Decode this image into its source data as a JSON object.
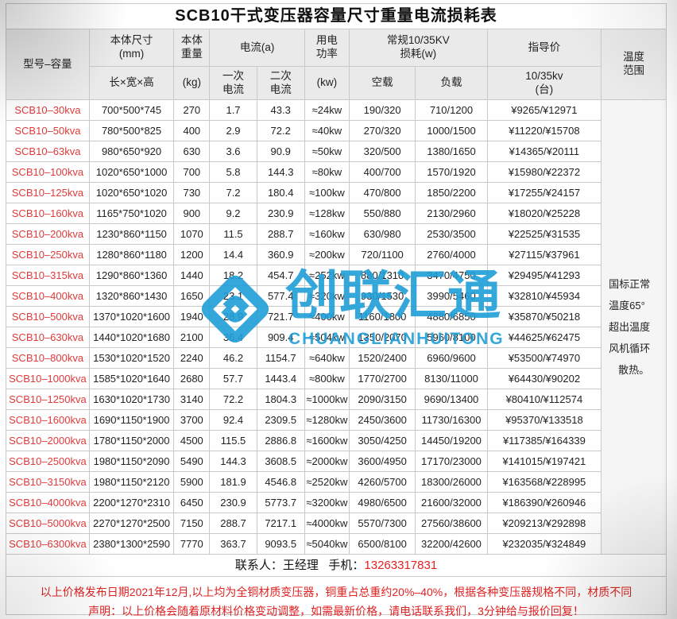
{
  "title": "SCB10干式变压器容量尺寸重量电流损耗表",
  "header": {
    "model": "型号–容量",
    "size_l1": "本体尺寸\n(mm)",
    "size_l2": "长×宽×高",
    "weight_l1": "本体\n重量",
    "weight_l2": "(kg)",
    "current": "电流(a)",
    "current_primary": "一次\n电流",
    "current_secondary": "二次\n电流",
    "power_l1": "用电\n功率",
    "power_l2": "(kw)",
    "loss": "常规10/35KV\n损耗(w)",
    "no_load": "空载",
    "load": "负载",
    "price_l1": "指导价",
    "price_l2": "10/35kv\n(台)",
    "temp": "温度\n范围"
  },
  "rows": [
    {
      "model": "SCB10–30kva",
      "size": "700*500*745",
      "weight": "270",
      "i1": "1.7",
      "i2": "43.3",
      "power": "≈24kw",
      "no_load": "190/320",
      "load": "710/1200",
      "price": "¥9265/¥12971"
    },
    {
      "model": "SCB10–50kva",
      "size": "780*500*825",
      "weight": "400",
      "i1": "2.9",
      "i2": "72.2",
      "power": "≈40kw",
      "no_load": "270/320",
      "load": "1000/1500",
      "price": "¥11220/¥15708"
    },
    {
      "model": "SCB10–63kva",
      "size": "980*650*920",
      "weight": "630",
      "i1": "3.6",
      "i2": "90.9",
      "power": "≈50kw",
      "no_load": "320/500",
      "load": "1380/1650",
      "price": "¥14365/¥20111"
    },
    {
      "model": "SCB10–100kva",
      "size": "1020*650*1000",
      "weight": "700",
      "i1": "5.8",
      "i2": "144.3",
      "power": "≈80kw",
      "no_load": "400/700",
      "load": "1570/1920",
      "price": "¥15980/¥22372"
    },
    {
      "model": "SCB10–125kva",
      "size": "1020*650*1020",
      "weight": "730",
      "i1": "7.2",
      "i2": "180.4",
      "power": "≈100kw",
      "no_load": "470/800",
      "load": "1850/2200",
      "price": "¥17255/¥24157"
    },
    {
      "model": "SCB10–160kva",
      "size": "1165*750*1020",
      "weight": "900",
      "i1": "9.2",
      "i2": "230.9",
      "power": "≈128kw",
      "no_load": "550/880",
      "load": "2130/2960",
      "price": "¥18020/¥25228"
    },
    {
      "model": "SCB10–200kva",
      "size": "1230*860*1150",
      "weight": "1070",
      "i1": "11.5",
      "i2": "288.7",
      "power": "≈160kw",
      "no_load": "630/980",
      "load": "2530/3500",
      "price": "¥22525/¥31535"
    },
    {
      "model": "SCB10–250kva",
      "size": "1280*860*1180",
      "weight": "1200",
      "i1": "14.4",
      "i2": "360.9",
      "power": "≈200kw",
      "no_load": "720/1100",
      "load": "2760/4000",
      "price": "¥27115/¥37961"
    },
    {
      "model": "SCB10–315kva",
      "size": "1290*860*1360",
      "weight": "1440",
      "i1": "18.2",
      "i2": "454.7",
      "power": "≈252kw",
      "no_load": "880/1310",
      "load": "3470/4750",
      "price": "¥29495/¥41293"
    },
    {
      "model": "SCB10–400kva",
      "size": "1320*860*1430",
      "weight": "1650",
      "i1": "23.1",
      "i2": "577.4",
      "power": "≈320kw",
      "no_load": "930/1530",
      "load": "3990/5460",
      "price": "¥32810/¥45934"
    },
    {
      "model": "SCB10–500kva",
      "size": "1370*1020*1600",
      "weight": "1940",
      "i1": "28.9",
      "i2": "721.7",
      "power": "≈400kw",
      "no_load": "1160/1800",
      "load": "4880/6850",
      "price": "¥35870/¥50218"
    },
    {
      "model": "SCB10–630kva",
      "size": "1440*1020*1680",
      "weight": "2100",
      "i1": "36.4",
      "i2": "909.4",
      "power": "≈504kw",
      "no_load": "1350/2070",
      "load": "5960/8100",
      "price": "¥44625/¥62475"
    },
    {
      "model": "SCB10–800kva",
      "size": "1530*1020*1520",
      "weight": "2240",
      "i1": "46.2",
      "i2": "1154.7",
      "power": "≈640kw",
      "no_load": "1520/2400",
      "load": "6960/9600",
      "price": "¥53500/¥74970"
    },
    {
      "model": "SCB10–1000kva",
      "size": "1585*1020*1640",
      "weight": "2680",
      "i1": "57.7",
      "i2": "1443.4",
      "power": "≈800kw",
      "no_load": "1770/2700",
      "load": "8130/11000",
      "price": "¥64430/¥90202"
    },
    {
      "model": "SCB10–1250kva",
      "size": "1630*1020*1730",
      "weight": "3140",
      "i1": "72.2",
      "i2": "1804.3",
      "power": "≈1000kw",
      "no_load": "2090/3150",
      "load": "9690/13400",
      "price": "¥80410/¥112574"
    },
    {
      "model": "SCB10–1600kva",
      "size": "1690*1150*1900",
      "weight": "3700",
      "i1": "92.4",
      "i2": "2309.5",
      "power": "≈1280kw",
      "no_load": "2450/3600",
      "load": "11730/16300",
      "price": "¥95370/¥133518"
    },
    {
      "model": "SCB10–2000kva",
      "size": "1780*1150*2000",
      "weight": "4500",
      "i1": "115.5",
      "i2": "2886.8",
      "power": "≈1600kw",
      "no_load": "3050/4250",
      "load": "14450/19200",
      "price": "¥117385/¥164339"
    },
    {
      "model": "SCB10–2500kva",
      "size": "1980*1150*2090",
      "weight": "5490",
      "i1": "144.3",
      "i2": "3608.5",
      "power": "≈2000kw",
      "no_load": "3600/4950",
      "load": "17170/23000",
      "price": "¥141015/¥197421"
    },
    {
      "model": "SCB10–3150kva",
      "size": "1980*1150*2120",
      "weight": "5900",
      "i1": "181.9",
      "i2": "4546.8",
      "power": "≈2520kw",
      "no_load": "4260/5700",
      "load": "18300/26000",
      "price": "¥163568/¥228995"
    },
    {
      "model": "SCB10–4000kva",
      "size": "2200*1270*2310",
      "weight": "6450",
      "i1": "230.9",
      "i2": "5773.7",
      "power": "≈3200kw",
      "no_load": "4980/6500",
      "load": "21600/32000",
      "price": "¥186390/¥260946"
    },
    {
      "model": "SCB10–5000kva",
      "size": "2270*1270*2500",
      "weight": "7150",
      "i1": "288.7",
      "i2": "7217.1",
      "power": "≈4000kw",
      "no_load": "5570/7300",
      "load": "27560/38600",
      "price": "¥209213/¥292898"
    },
    {
      "model": "SCB10–6300kva",
      "size": "2380*1300*2590",
      "weight": "7770",
      "i1": "363.7",
      "i2": "9093.5",
      "power": "≈5040kw",
      "no_load": "6500/8100",
      "load": "32200/42600",
      "price": "¥232035/¥324849"
    }
  ],
  "temp_note": {
    "lines": [
      "国标正常",
      "温度65°",
      "超出温度",
      "风机循环",
      "散热。"
    ]
  },
  "watermark": {
    "cn": "创联汇通",
    "en": "CHUANGLIANHUITONG"
  },
  "contact": {
    "person": "联系人：王经理",
    "phone_label": "手机：",
    "phone": "13263317831"
  },
  "footer": {
    "line1": "以上价格发布日期2021年12月,以上均为全铜材质变压器，铜重占总重约20%–40%，根据各种变压器规格不同，材质不同",
    "line2": "声明：以上价格会随着原材料价格变动调整，如需最新价格，请电话联系我们，3分钟给与报价回复！"
  },
  "colors": {
    "accent_red": "#e03a3a",
    "footer_red": "#e02222",
    "phone_red": "#e51f1f",
    "watermark_blue": "#1f9ed8",
    "header_bg": "#eaeaea",
    "border": "#c9c9c9"
  }
}
